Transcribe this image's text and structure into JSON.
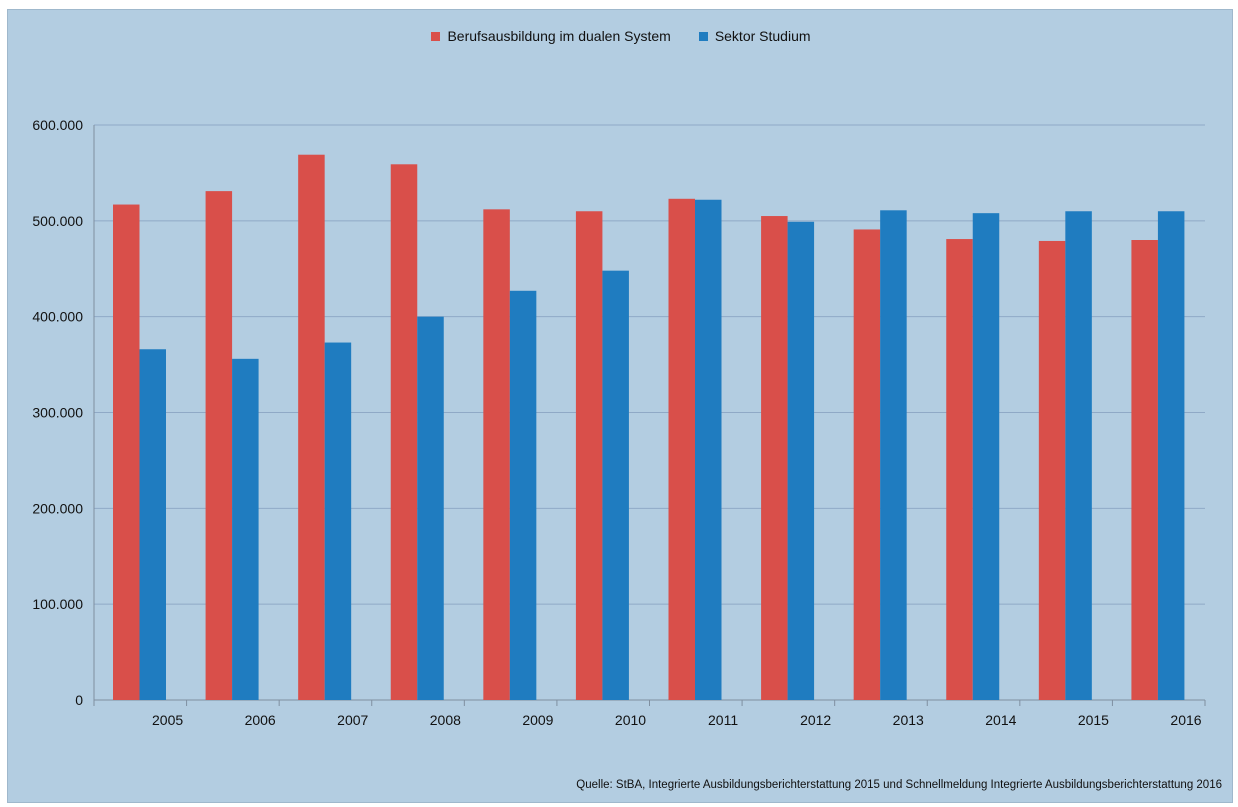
{
  "chart_data": {
    "type": "bar",
    "title": "",
    "xlabel": "",
    "ylabel": "",
    "categories": [
      "2005",
      "2006",
      "2007",
      "2008",
      "2009",
      "2010",
      "2011",
      "2012",
      "2013",
      "2014",
      "2015",
      "2016"
    ],
    "series": [
      {
        "name": "Berufsausbildung im dualen System",
        "color": "#d94f4a",
        "values": [
          517000,
          531000,
          569000,
          559000,
          512000,
          510000,
          523000,
          505000,
          491000,
          481000,
          479000,
          480000
        ]
      },
      {
        "name": "Sektor Studium",
        "color": "#1f7cc0",
        "values": [
          366000,
          356000,
          373000,
          400000,
          427000,
          448000,
          522000,
          499000,
          511000,
          508000,
          510000,
          510000
        ]
      }
    ],
    "ylim": [
      0,
      600000
    ],
    "yticks": [
      0,
      100000,
      200000,
      300000,
      400000,
      500000,
      600000
    ],
    "ytick_labels": [
      "0",
      "100.000",
      "200.000",
      "300.000",
      "400.000",
      "500.000",
      "600.000"
    ],
    "grid": true,
    "legend_position": "top-center",
    "background": "#b3cde1",
    "gridline_color": "#8fa9c6",
    "source_note": "Quelle: StBA, Integrierte Ausbildungsberichterstattung 2015 und Schnellmeldung Integrierte Ausbildungsberichterstattung 2016"
  }
}
